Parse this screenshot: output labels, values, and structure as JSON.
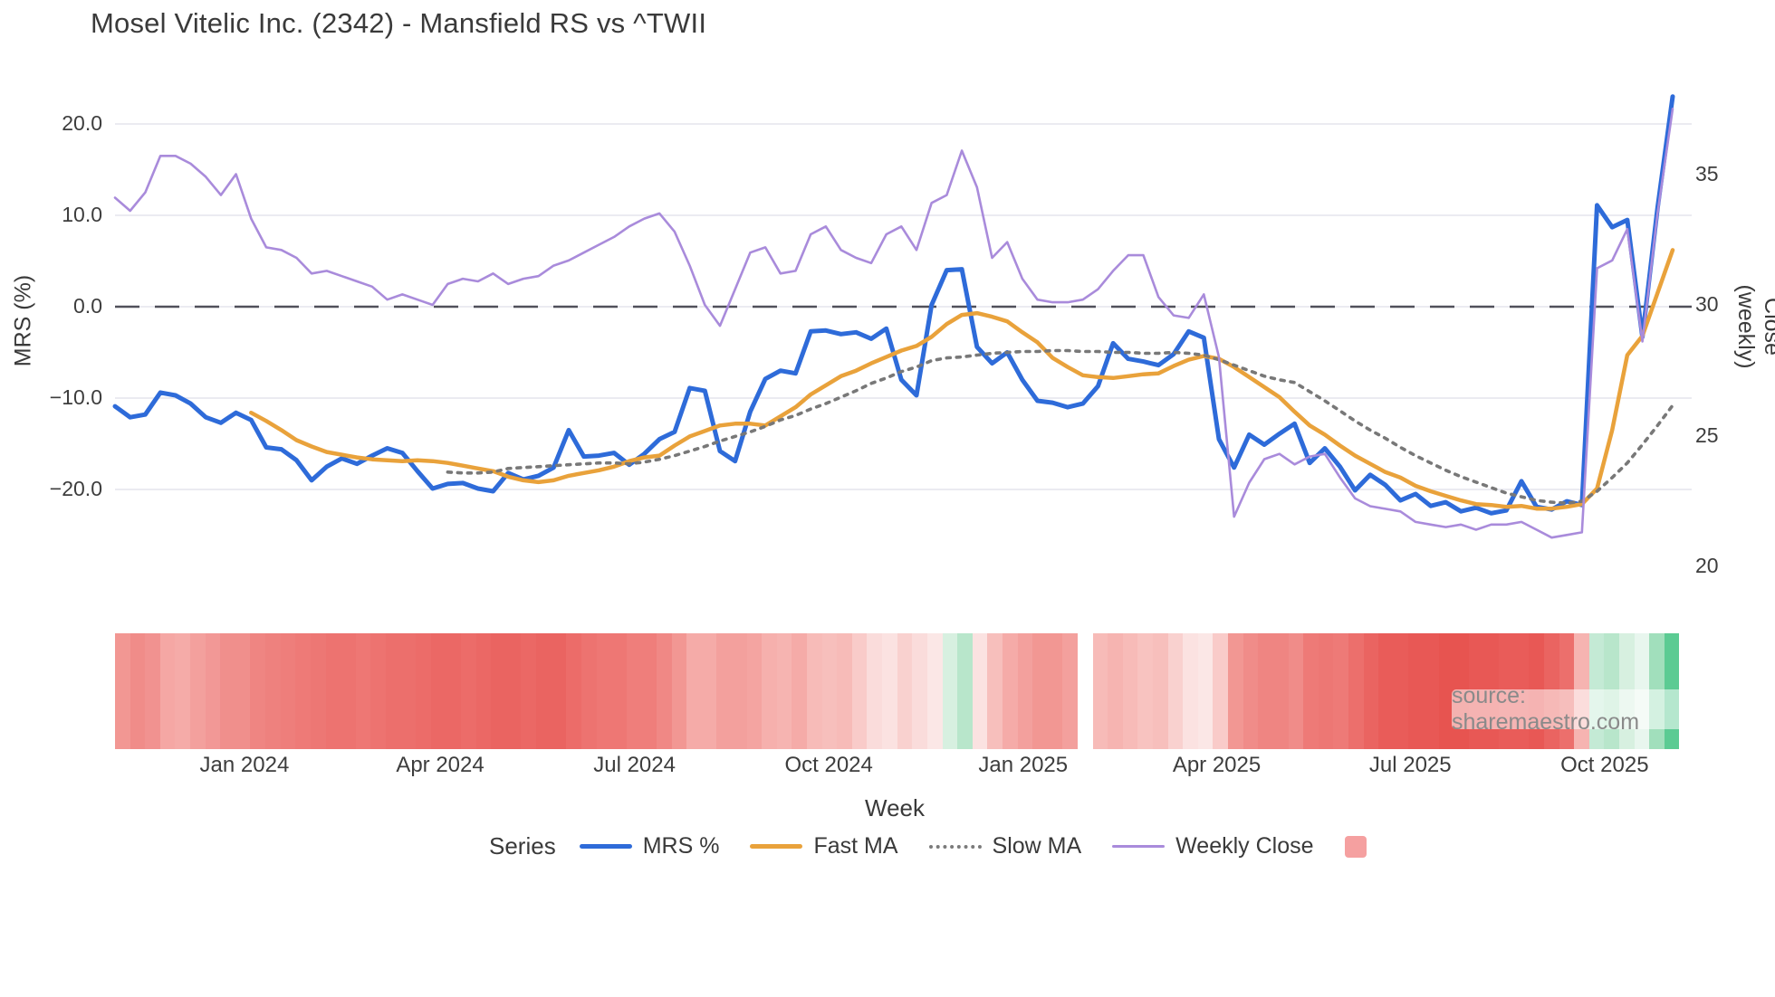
{
  "title": "Mosel Vitelic Inc. (2342) - Mansfield RS vs ^TWII",
  "watermark": "source: sharemaestro.com",
  "axes": {
    "x_label": "Week",
    "y_left_label": "MRS (%)",
    "y_right_label": "Close (weekly)",
    "x_tick_labels": [
      "Jan 2024",
      "Apr 2024",
      "Jul 2024",
      "Oct 2024",
      "Jan 2025",
      "Apr 2025",
      "Jul 2025",
      "Oct 2025"
    ],
    "y_left_tick_labels": [
      "20.0",
      "10.0",
      "0.0",
      "−10.0",
      "−20.0"
    ],
    "y_right_tick_labels": [
      "35",
      "30",
      "25",
      "20"
    ]
  },
  "legend": {
    "series_label": "Series",
    "items": [
      {
        "label": "MRS %",
        "type": "line",
        "color": "#2E6BD9"
      },
      {
        "label": "Fast MA",
        "type": "line",
        "color": "#E9A23B"
      },
      {
        "label": "Slow MA",
        "type": "dotted",
        "color": "#7B7B7B"
      },
      {
        "label": "Weekly Close",
        "type": "line-thin",
        "color": "#A98BDB"
      },
      {
        "label": "",
        "type": "square",
        "color": "#F5A0A0"
      }
    ]
  },
  "colors": {
    "mrs_line": "#2E6BD9",
    "fast_ma_line": "#E9A23B",
    "slow_ma_line": "#787878",
    "weekly_close_line": "#A98BDB",
    "zero_dash_line": "#50505A",
    "gridline": "#EBEBF1",
    "heat_legend_swatch": "#F5A0A0",
    "watermark_text": "#8A8A8A"
  },
  "chart_data": {
    "type": "line",
    "title": "Mosel Vitelic Inc. (2342) - Mansfield RS vs ^TWII",
    "xlabel": "Week",
    "ylabel_left": "MRS (%)",
    "ylabel_right": "Close (weekly)",
    "weeks": 104,
    "x_range_note": "weekly points, early Nov 2023 to early Nov 2025",
    "x_tick_week_index": [
      8.56,
      21.5,
      34.35,
      47.2,
      60.05,
      72.85,
      85.65,
      98.5
    ],
    "y_left_tick_values": [
      20,
      10,
      0,
      -10,
      -20
    ],
    "y_right_tick_values": [
      35,
      30,
      25,
      20
    ],
    "zero_reference_line": 0,
    "grid": true,
    "legend_position": "bottom",
    "series": [
      {
        "name": "MRS %",
        "axis": "left",
        "style": "solid",
        "color": "#2E6BD9",
        "width": 5,
        "values": [
          -10.9,
          -12.1,
          -11.8,
          -9.4,
          -9.7,
          -10.6,
          -12.1,
          -12.7,
          -11.6,
          -12.4,
          -15.4,
          -15.6,
          -16.8,
          -19.0,
          -17.5,
          -16.6,
          -17.2,
          -16.3,
          -15.5,
          -16.0,
          -18.0,
          -19.9,
          -19.4,
          -19.3,
          -19.9,
          -20.2,
          -18.2,
          -18.9,
          -18.5,
          -17.6,
          -13.5,
          -16.4,
          -16.3,
          -16.0,
          -17.3,
          -16.1,
          -14.5,
          -13.7,
          -8.9,
          -9.2,
          -15.8,
          -16.9,
          -11.5,
          -7.9,
          -7.0,
          -7.3,
          -2.7,
          -2.6,
          -3.0,
          -2.8,
          -3.5,
          -2.4,
          -8.0,
          -9.7,
          0.2,
          4.0,
          4.1,
          -4.4,
          -6.2,
          -5.0,
          -8.0,
          -10.3,
          -10.5,
          -11.0,
          -10.6,
          -8.7,
          -4.0,
          -5.7,
          -6.0,
          -6.4,
          -5.2,
          -2.7,
          -3.4,
          -14.5,
          -17.6,
          -14.0,
          -15.1,
          -13.9,
          -12.8,
          -17.1,
          -15.5,
          -17.5,
          -20.1,
          -18.4,
          -19.5,
          -21.2,
          -20.5,
          -21.8,
          -21.4,
          -22.4,
          -22.0,
          -22.6,
          -22.3,
          -19.1,
          -21.9,
          -22.2,
          -21.3,
          -21.7,
          11.1,
          8.7,
          9.5,
          -3.3,
          10.8,
          23.0
        ]
      },
      {
        "name": "Fast MA",
        "axis": "left",
        "style": "solid",
        "color": "#E9A23B",
        "width": 4.5,
        "values": [
          null,
          null,
          null,
          null,
          null,
          null,
          null,
          null,
          null,
          -11.6,
          -12.5,
          -13.5,
          -14.6,
          -15.3,
          -15.9,
          -16.2,
          -16.5,
          -16.7,
          -16.8,
          -16.9,
          -16.8,
          -16.9,
          -17.1,
          -17.4,
          -17.7,
          -18.0,
          -18.6,
          -19.0,
          -19.2,
          -19.0,
          -18.5,
          -18.2,
          -17.9,
          -17.5,
          -16.9,
          -16.5,
          -16.3,
          -15.2,
          -14.2,
          -13.6,
          -13.0,
          -12.8,
          -12.8,
          -13.0,
          -12.0,
          -11.0,
          -9.6,
          -8.6,
          -7.6,
          -7.0,
          -6.2,
          -5.5,
          -4.8,
          -4.3,
          -3.3,
          -1.9,
          -0.9,
          -0.7,
          -1.1,
          -1.6,
          -2.8,
          -3.9,
          -5.6,
          -6.6,
          -7.5,
          -7.7,
          -7.8,
          -7.6,
          -7.4,
          -7.3,
          -6.5,
          -5.8,
          -5.4,
          -5.7,
          -6.6,
          -7.7,
          -8.8,
          -9.9,
          -11.5,
          -13.0,
          -14.0,
          -15.2,
          -16.3,
          -17.2,
          -18.1,
          -18.7,
          -19.6,
          -20.2,
          -20.7,
          -21.2,
          -21.6,
          -21.7,
          -21.9,
          -21.8,
          -22.1,
          -22.1,
          -21.9,
          -21.6,
          -19.9,
          -13.5,
          -5.3,
          -3.2,
          1.5,
          6.2
        ]
      },
      {
        "name": "Slow MA",
        "axis": "left",
        "style": "dotted",
        "color": "#787878",
        "width": 3.6,
        "values": [
          null,
          null,
          null,
          null,
          null,
          null,
          null,
          null,
          null,
          null,
          null,
          null,
          null,
          null,
          null,
          null,
          null,
          null,
          null,
          null,
          null,
          null,
          -18.1,
          -18.2,
          -18.2,
          -18.1,
          -17.7,
          -17.6,
          -17.5,
          -17.4,
          -17.3,
          -17.2,
          -17.1,
          -17.1,
          -17.2,
          -17.0,
          -16.7,
          -16.3,
          -15.8,
          -15.3,
          -14.7,
          -14.2,
          -13.7,
          -13.1,
          -12.4,
          -11.9,
          -11.2,
          -10.6,
          -9.9,
          -9.2,
          -8.4,
          -7.8,
          -7.1,
          -6.6,
          -5.9,
          -5.6,
          -5.5,
          -5.3,
          -5.1,
          -5.0,
          -4.9,
          -4.9,
          -4.8,
          -4.8,
          -4.9,
          -4.9,
          -5.0,
          -5.0,
          -5.1,
          -5.1,
          -5.0,
          -5.1,
          -5.3,
          -5.8,
          -6.4,
          -7.0,
          -7.6,
          -8.0,
          -8.3,
          -9.3,
          -10.3,
          -11.4,
          -12.5,
          -13.5,
          -14.4,
          -15.4,
          -16.3,
          -17.1,
          -17.9,
          -18.6,
          -19.2,
          -19.8,
          -20.4,
          -20.8,
          -21.2,
          -21.4,
          -21.5,
          -21.3,
          -20.2,
          -18.7,
          -17.1,
          -15.1,
          -13.0,
          -10.8
        ]
      },
      {
        "name": "Weekly Close",
        "axis": "right",
        "style": "solid",
        "color": "#A98BDB",
        "width": 2.6,
        "values": [
          34.1,
          33.6,
          34.3,
          35.7,
          35.7,
          35.4,
          34.9,
          34.2,
          35.0,
          33.3,
          32.2,
          32.1,
          31.8,
          31.2,
          31.3,
          31.1,
          30.9,
          30.7,
          30.2,
          30.4,
          30.2,
          30.0,
          30.8,
          31.0,
          30.9,
          31.2,
          30.8,
          31.0,
          31.1,
          31.5,
          31.7,
          32.0,
          32.3,
          32.6,
          33.0,
          33.3,
          33.5,
          32.8,
          31.5,
          30.0,
          29.2,
          30.6,
          32.0,
          32.2,
          31.2,
          31.3,
          32.7,
          33.0,
          32.1,
          31.8,
          31.6,
          32.7,
          33.0,
          32.1,
          33.9,
          34.2,
          35.9,
          34.5,
          31.8,
          32.4,
          31.0,
          30.2,
          30.1,
          30.1,
          30.2,
          30.6,
          31.3,
          31.9,
          31.9,
          30.3,
          29.6,
          29.5,
          30.4,
          28.0,
          21.9,
          23.2,
          24.1,
          24.3,
          23.9,
          24.2,
          24.3,
          23.4,
          22.6,
          22.3,
          22.2,
          22.1,
          21.7,
          21.6,
          21.5,
          21.6,
          21.4,
          21.6,
          21.6,
          21.7,
          21.4,
          21.1,
          21.2,
          21.3,
          31.4,
          31.7,
          32.9,
          28.6,
          33.5,
          37.5
        ]
      }
    ],
    "heatmap_strip": {
      "note": "weekly heat band under chart; white cell = missing week",
      "colors": [
        "#F29793",
        "#F08C89",
        "#F19290",
        "#F5A7A4",
        "#F5ABA8",
        "#F3A09D",
        "#F29896",
        "#F08F8C",
        "#F08F8C",
        "#EF8582",
        "#EE817E",
        "#EE7E7B",
        "#EE7A77",
        "#ED7774",
        "#ED7370",
        "#ED7370",
        "#EE7774",
        "#ED7370",
        "#EC6F6C",
        "#EC6F6C",
        "#EC6C69",
        "#EB6865",
        "#EB6865",
        "#EC6C69",
        "#EB6865",
        "#EA6461",
        "#EA6461",
        "#EB6865",
        "#EA6461",
        "#EA6461",
        "#EC6C69",
        "#ED7370",
        "#EE7774",
        "#EE7774",
        "#EF7E7B",
        "#EF7E7B",
        "#F08885",
        "#F29793",
        "#F5ABA8",
        "#F5ABA8",
        "#F3A09D",
        "#F3A09D",
        "#F4A4A1",
        "#F6B0AD",
        "#F6B4B1",
        "#F5ABA8",
        "#F7BBB8",
        "#F7BFBC",
        "#F7BBB8",
        "#F9CBC9",
        "#FADCDB",
        "#FBE2E1",
        "#F9D1CF",
        "#FADCDB",
        "#FBE7E6",
        "#D7F0E0",
        "#B8E6CB",
        "#FBE2E1",
        "#F7BFBC",
        "#F5ABA8",
        "#F3A09D",
        "#F29793",
        "#F29793",
        "#F3A09D",
        "#FFFFFF",
        "#F7BBB8",
        "#F6B4B1",
        "#F7BBB8",
        "#F8C3C0",
        "#F7BFBC",
        "#F9D1CF",
        "#FBE2E1",
        "#FBE7E6",
        "#F9CBC9",
        "#F29793",
        "#F08C89",
        "#EF8582",
        "#EF8582",
        "#F08C89",
        "#EE7A77",
        "#ED7774",
        "#EE7A77",
        "#EC6F6C",
        "#EA6461",
        "#E95C59",
        "#E95C59",
        "#E85855",
        "#E85855",
        "#E75450",
        "#E75450",
        "#E85855",
        "#E85855",
        "#E95C59",
        "#E95C59",
        "#E85855",
        "#EA6461",
        "#EC6F6C",
        "#F6B4B1",
        "#C4EAD5",
        "#B8E6CB",
        "#D7F0E0",
        "#E8F6EE",
        "#A1DFBC",
        "#5BCB93"
      ]
    }
  }
}
